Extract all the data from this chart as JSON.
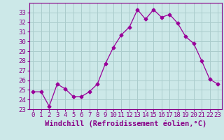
{
  "hours": [
    0,
    1,
    2,
    3,
    4,
    5,
    6,
    7,
    8,
    9,
    10,
    11,
    12,
    13,
    14,
    15,
    16,
    17,
    18,
    19,
    20,
    21,
    22,
    23
  ],
  "values": [
    24.8,
    24.8,
    23.3,
    25.6,
    25.1,
    24.3,
    24.3,
    24.8,
    25.6,
    27.7,
    29.4,
    30.7,
    31.5,
    33.3,
    32.3,
    33.3,
    32.5,
    32.8,
    31.9,
    30.5,
    29.8,
    28.0,
    26.1,
    25.6
  ],
  "line_color": "#990099",
  "marker": "D",
  "bg_color": "#cce8e8",
  "grid_color": "#aacccc",
  "xlabel": "Windchill (Refroidissement éolien,°C)",
  "ylim": [
    23,
    34
  ],
  "yticks": [
    23,
    24,
    25,
    26,
    27,
    28,
    29,
    30,
    31,
    32,
    33
  ],
  "xticks": [
    0,
    1,
    2,
    3,
    4,
    5,
    6,
    7,
    8,
    9,
    10,
    11,
    12,
    13,
    14,
    15,
    16,
    17,
    18,
    19,
    20,
    21,
    22,
    23
  ],
  "xlabel_fontsize": 7.5,
  "tick_fontsize": 6.5,
  "tick_color": "#880088",
  "axis_color": "#880088",
  "markersize": 2.5,
  "linewidth": 0.9
}
